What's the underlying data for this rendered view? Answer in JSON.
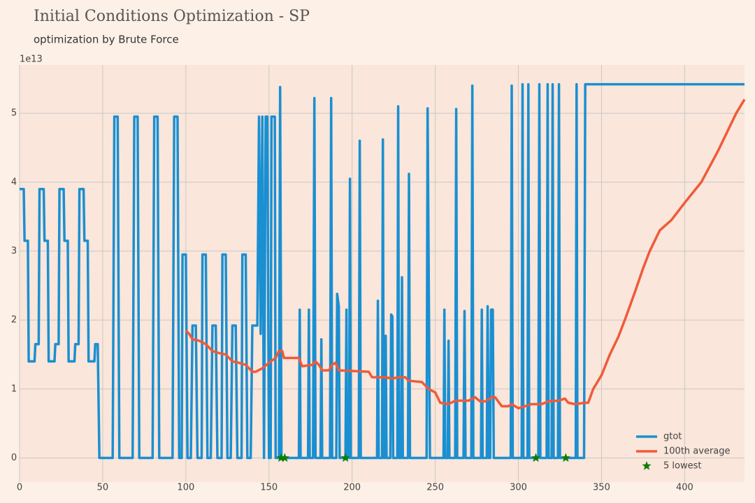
{
  "chart_data": {
    "type": "line",
    "title": "Initial Conditions Optimization - SP",
    "subtitle": "optimization by Brute Force",
    "offset_label": "1e13",
    "xlim": [
      0,
      436
    ],
    "ylim": [
      -0.35,
      5.7
    ],
    "xticks": [
      0,
      50,
      100,
      150,
      200,
      250,
      300,
      350,
      400
    ],
    "yticks": [
      0,
      1,
      2,
      3,
      4,
      5
    ],
    "grid": true,
    "legend": "lower right",
    "series": [
      {
        "name": "gtot",
        "type": "line",
        "color": "#1a8fd1",
        "x": [
          0,
          2.5,
          3,
          5,
          5.5,
          9,
          9.5,
          11.5,
          12,
          14.5,
          15,
          17,
          17.5,
          21,
          21.5,
          23.5,
          24,
          26.5,
          27,
          29,
          29.5,
          33,
          33.5,
          35.5,
          36,
          38.5,
          39,
          41,
          41.5,
          45,
          45.5,
          47,
          48,
          56,
          57,
          59,
          60,
          68,
          69,
          71,
          72,
          80,
          81,
          83,
          84,
          92,
          93,
          95,
          96,
          97.5,
          98,
          100,
          101,
          103,
          104,
          106,
          107,
          109.5,
          110,
          112,
          113,
          115,
          116,
          118,
          119,
          121.5,
          122,
          124,
          125,
          127,
          128,
          130,
          131,
          133.5,
          134,
          136,
          137,
          139,
          140,
          143,
          144,
          145,
          146,
          147,
          148,
          149,
          150,
          151,
          151.5,
          153.5,
          154,
          156,
          156.7,
          157.5,
          168,
          168.5,
          169,
          173.5,
          174,
          174.5,
          176.5,
          177.3,
          178,
          181,
          181.5,
          182,
          186.7,
          187.4,
          188,
          190.5,
          191,
          192,
          192.5,
          196,
          196.6,
          197,
          198.2,
          198.7,
          199.2,
          204,
          204.6,
          205.2,
          215,
          215.5,
          216,
          218,
          218.5,
          219,
          219.7,
          220.2,
          220.7,
          223,
          223.5,
          224.2,
          224.7,
          227.2,
          227.7,
          228.2,
          229.5,
          230,
          230.5,
          233.6,
          234.2,
          234.8,
          244.8,
          245.4,
          246.2,
          246.8,
          255,
          255.5,
          256,
          257.5,
          258,
          258.5,
          262,
          262.6,
          263.2,
          267,
          267.6,
          268.2,
          271.7,
          272.3,
          272.9,
          277.5,
          278,
          278.5,
          281,
          281.5,
          282.2,
          283,
          283.6,
          284.6,
          285.2,
          295.4,
          296,
          296.6,
          302,
          302.5,
          303,
          305.5,
          306,
          306.5,
          312,
          312.6,
          313.2,
          317,
          317.6,
          318.2,
          320,
          320.6,
          321.2,
          323.8,
          324.4,
          325,
          334.5,
          335,
          335.5,
          339.5,
          340.2,
          436
        ],
        "values": [
          3.9,
          3.9,
          3.15,
          3.15,
          1.4,
          1.4,
          1.65,
          1.65,
          3.9,
          3.9,
          3.15,
          3.15,
          1.4,
          1.4,
          1.65,
          1.65,
          3.9,
          3.9,
          3.15,
          3.15,
          1.4,
          1.4,
          1.65,
          1.65,
          3.9,
          3.9,
          3.15,
          3.15,
          1.4,
          1.4,
          1.65,
          1.65,
          0,
          0,
          4.95,
          4.95,
          0,
          0,
          4.95,
          4.95,
          0,
          0,
          4.95,
          4.95,
          0,
          0,
          4.95,
          4.95,
          0,
          0,
          2.95,
          2.95,
          0,
          0,
          1.92,
          1.92,
          0,
          0,
          2.95,
          2.95,
          0,
          0,
          1.92,
          1.92,
          0,
          0,
          2.95,
          2.95,
          0,
          0,
          1.92,
          1.92,
          0,
          0,
          2.95,
          2.95,
          0,
          0,
          1.92,
          1.92,
          4.95,
          1.8,
          4.95,
          0,
          4.95,
          4.95,
          0,
          0,
          4.95,
          4.95,
          0,
          0,
          5.38,
          0,
          0,
          2.15,
          0,
          0,
          2.15,
          0,
          0,
          5.22,
          0,
          0,
          1.72,
          0,
          0,
          5.22,
          0,
          0,
          2.38,
          2.2,
          0,
          0,
          2.15,
          0,
          0,
          4.05,
          0,
          0,
          4.6,
          0,
          0,
          2.28,
          0,
          0,
          4.62,
          0,
          0,
          1.77,
          0,
          0,
          2.08,
          2.05,
          0,
          0,
          5.1,
          0,
          0,
          2.62,
          0,
          0,
          4.12,
          0,
          0,
          5.07,
          2.15,
          0,
          0,
          2.15,
          0,
          0,
          1.7,
          0,
          0,
          5.06,
          0,
          0,
          2.13,
          0,
          0,
          5.4,
          0,
          0,
          2.15,
          0,
          0,
          2.2,
          0,
          0,
          2.15,
          2.15,
          0,
          0,
          5.4,
          0,
          0,
          5.42,
          0,
          0,
          5.42,
          0,
          0,
          5.42,
          0,
          0,
          5.42,
          0,
          0,
          5.42,
          0,
          0,
          5.42,
          0,
          0,
          5.42,
          0,
          0,
          5.42,
          5.42
        ]
      },
      {
        "name": "100th average",
        "type": "line",
        "color": "#f05a3a",
        "x": [
          100,
          102,
          104,
          108,
          112,
          116,
          120,
          124,
          128,
          132,
          136,
          140,
          142,
          146,
          150,
          154,
          156,
          158,
          159,
          168,
          170,
          176,
          178,
          180,
          182,
          186,
          188,
          190,
          192,
          210,
          212,
          220,
          224,
          228,
          232,
          234,
          242,
          246,
          250,
          253,
          258,
          262,
          270,
          274,
          277,
          280,
          284,
          286,
          290,
          294,
          296,
          300,
          304,
          308,
          314,
          318,
          324,
          328,
          330,
          334,
          340,
          342,
          345,
          350,
          355,
          360,
          364,
          370,
          375,
          379,
          385,
          392,
          400,
          410,
          420,
          431,
          436
        ],
        "values": [
          1.85,
          1.8,
          1.72,
          1.7,
          1.65,
          1.55,
          1.52,
          1.5,
          1.4,
          1.38,
          1.35,
          1.25,
          1.25,
          1.3,
          1.38,
          1.45,
          1.55,
          1.55,
          1.45,
          1.45,
          1.33,
          1.35,
          1.4,
          1.35,
          1.27,
          1.27,
          1.35,
          1.38,
          1.27,
          1.25,
          1.17,
          1.17,
          1.15,
          1.17,
          1.17,
          1.12,
          1.1,
          1.0,
          0.95,
          0.8,
          0.78,
          0.83,
          0.83,
          0.88,
          0.82,
          0.82,
          0.88,
          0.88,
          0.75,
          0.75,
          0.78,
          0.72,
          0.75,
          0.78,
          0.78,
          0.82,
          0.83,
          0.86,
          0.8,
          0.78,
          0.8,
          0.8,
          1.0,
          1.2,
          1.5,
          1.75,
          2.0,
          2.4,
          2.75,
          3.0,
          3.3,
          3.45,
          3.7,
          4.0,
          4.45,
          5.0,
          5.2
        ]
      },
      {
        "name": "5 lowest",
        "type": "scatter",
        "color": "#0a7d0a",
        "x": [
          157.3,
          159.5,
          196,
          310.5,
          328.5
        ],
        "values": [
          0,
          0,
          0,
          0,
          0
        ]
      }
    ]
  }
}
